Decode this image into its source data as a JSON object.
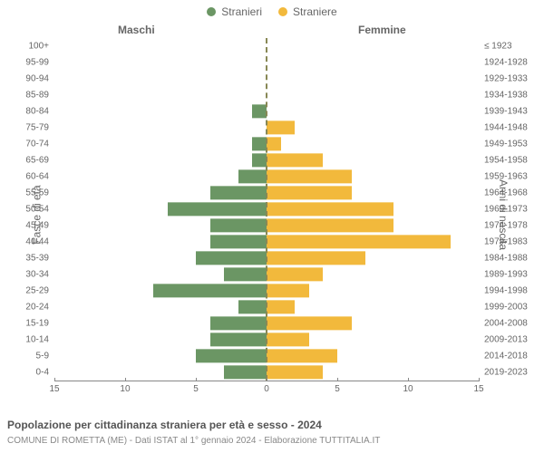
{
  "chart": {
    "type": "population-pyramid",
    "legend": {
      "male": {
        "label": "Stranieri",
        "color": "#6b9664"
      },
      "female": {
        "label": "Straniere",
        "color": "#f2b93c"
      }
    },
    "side_titles": {
      "left": "Maschi",
      "right": "Femmine"
    },
    "yaxis_labels": {
      "left": "Fasce di età",
      "right": "Anni di nascita"
    },
    "xaxis": {
      "ticks": [
        -15,
        -10,
        -5,
        0,
        5,
        10,
        15
      ],
      "tick_labels": [
        "15",
        "10",
        "5",
        "0",
        "5",
        "10",
        "15"
      ],
      "min": -15,
      "max": 15
    },
    "rows": [
      {
        "age": "100+",
        "birth": "≤ 1923",
        "m": 0,
        "f": 0
      },
      {
        "age": "95-99",
        "birth": "1924-1928",
        "m": 0,
        "f": 0
      },
      {
        "age": "90-94",
        "birth": "1929-1933",
        "m": 0,
        "f": 0
      },
      {
        "age": "85-89",
        "birth": "1934-1938",
        "m": 0,
        "f": 0
      },
      {
        "age": "80-84",
        "birth": "1939-1943",
        "m": 1,
        "f": 0
      },
      {
        "age": "75-79",
        "birth": "1944-1948",
        "m": 0,
        "f": 2
      },
      {
        "age": "70-74",
        "birth": "1949-1953",
        "m": 1,
        "f": 1
      },
      {
        "age": "65-69",
        "birth": "1954-1958",
        "m": 1,
        "f": 4
      },
      {
        "age": "60-64",
        "birth": "1959-1963",
        "m": 2,
        "f": 6
      },
      {
        "age": "55-59",
        "birth": "1964-1968",
        "m": 4,
        "f": 6
      },
      {
        "age": "50-54",
        "birth": "1969-1973",
        "m": 7,
        "f": 9
      },
      {
        "age": "45-49",
        "birth": "1974-1978",
        "m": 4,
        "f": 9
      },
      {
        "age": "40-44",
        "birth": "1979-1983",
        "m": 4,
        "f": 13
      },
      {
        "age": "35-39",
        "birth": "1984-1988",
        "m": 5,
        "f": 7
      },
      {
        "age": "30-34",
        "birth": "1989-1993",
        "m": 3,
        "f": 4
      },
      {
        "age": "25-29",
        "birth": "1994-1998",
        "m": 8,
        "f": 3
      },
      {
        "age": "20-24",
        "birth": "1999-2003",
        "m": 2,
        "f": 2
      },
      {
        "age": "15-19",
        "birth": "2004-2008",
        "m": 4,
        "f": 6
      },
      {
        "age": "10-14",
        "birth": "2009-2013",
        "m": 4,
        "f": 3
      },
      {
        "age": "5-9",
        "birth": "2014-2018",
        "m": 5,
        "f": 5
      },
      {
        "age": "0-4",
        "birth": "2019-2023",
        "m": 3,
        "f": 4
      }
    ],
    "style": {
      "background": "#ffffff",
      "center_line_color": "#888855",
      "axis_color": "#888888",
      "label_color": "#666666",
      "tick_fontsize": 10,
      "row_label_fontsize": 10,
      "legend_fontsize": 12,
      "bar_height_ratio": 0.85
    }
  },
  "footer": {
    "title": "Popolazione per cittadinanza straniera per età e sesso - 2024",
    "subtitle": "COMUNE DI ROMETTA (ME) - Dati ISTAT al 1° gennaio 2024 - Elaborazione TUTTITALIA.IT"
  }
}
